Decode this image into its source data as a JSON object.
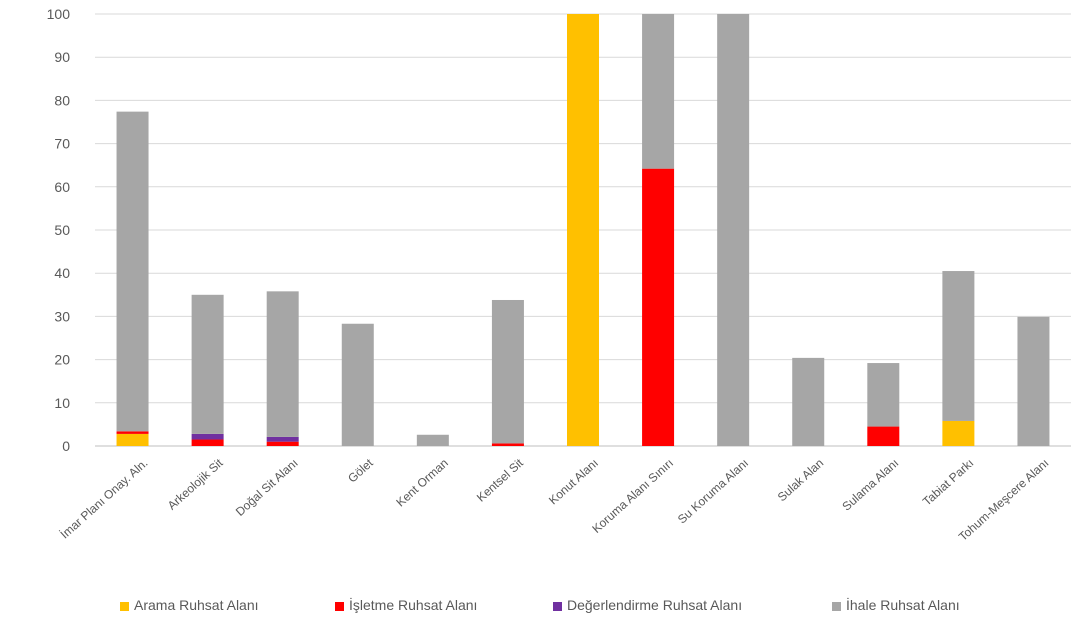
{
  "chart_data": {
    "type": "bar",
    "stacked": true,
    "categories": [
      "İmar Planı Onay. Aln.",
      "Arkeolojik Sit",
      "Doğal Sit Alanı",
      "Gölet",
      "Kent Orman",
      "Kentsel Sit",
      "Konut Alanı",
      "Koruma Alanı Sınırı",
      "Su Koruma Alanı",
      "Sulak Alan",
      "Sulama Alanı",
      "Tabiat Parkı",
      "Tohum-Meşcere Alanı"
    ],
    "series": [
      {
        "name": "Arama Ruhsat Alanı",
        "color": "#FFC000",
        "values": [
          2.8,
          0,
          0,
          0,
          0,
          0,
          100,
          0,
          0,
          0,
          0,
          5.8,
          0
        ]
      },
      {
        "name": "İşletme Ruhsat Alanı",
        "color": "#FF0000",
        "values": [
          0.6,
          1.5,
          1.0,
          0,
          0,
          0.6,
          0,
          64.2,
          0,
          0,
          4.5,
          0,
          0
        ]
      },
      {
        "name": "Değerlendirme Ruhsat Alanı",
        "color": "#7030A0",
        "values": [
          0,
          1.3,
          1.1,
          0,
          0,
          0,
          0,
          0,
          0,
          0,
          0,
          0,
          0
        ]
      },
      {
        "name": "İhale Ruhsat Alanı",
        "color": "#A6A6A6",
        "values": [
          74.0,
          32.2,
          33.7,
          28.3,
          2.6,
          33.2,
          0,
          35.8,
          100,
          20.4,
          14.7,
          34.7,
          29.9
        ]
      }
    ],
    "ylim": [
      0,
      100
    ],
    "yticks": [
      0,
      10,
      20,
      30,
      40,
      50,
      60,
      70,
      80,
      90,
      100
    ],
    "grid": true,
    "legend_position": "bottom"
  },
  "legend": [
    {
      "label": "Arama Ruhsat Alanı",
      "color": "#FFC000"
    },
    {
      "label": "İşletme Ruhsat Alanı",
      "color": "#FF0000"
    },
    {
      "label": "Değerlendirme Ruhsat Alanı",
      "color": "#7030A0"
    },
    {
      "label": "İhale Ruhsat Alanı",
      "color": "#A6A6A6"
    }
  ]
}
